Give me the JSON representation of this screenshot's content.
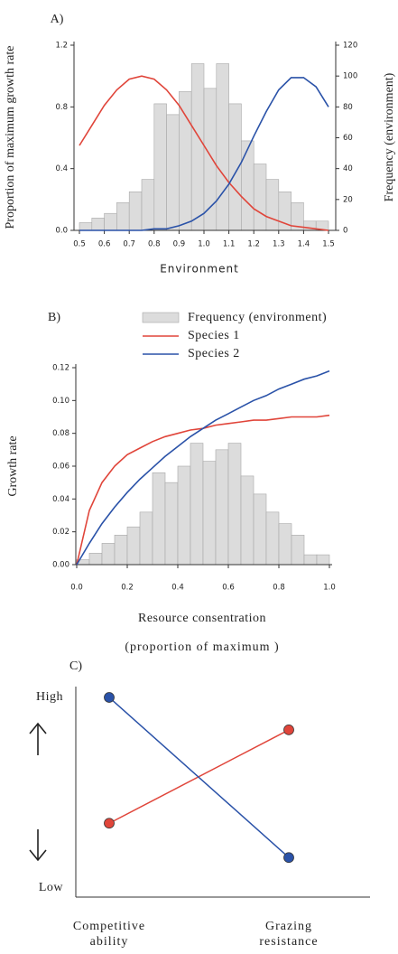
{
  "chart_data": [
    {
      "type": "histogram",
      "title": "A)",
      "xlabel": "Environment",
      "ylabel": "Proportion of maximum growth rate",
      "y2label": "Frequency (environment)",
      "histogram": {
        "bins": [
          0.5,
          0.55,
          0.6,
          0.65,
          0.7,
          0.75,
          0.8,
          0.85,
          0.9,
          0.95,
          1.0,
          1.05,
          1.1,
          1.15,
          1.2,
          1.25,
          1.3,
          1.35,
          1.4,
          1.45,
          1.5
        ],
        "counts": [
          5,
          8,
          11,
          18,
          25,
          33,
          82,
          75,
          90,
          108,
          92,
          108,
          82,
          58,
          43,
          33,
          25,
          18,
          6,
          6
        ],
        "color": "#dcdcdc",
        "axis": "y2"
      },
      "x": [
        0.5,
        0.55,
        0.6,
        0.65,
        0.7,
        0.75,
        0.8,
        0.85,
        0.9,
        0.95,
        1.0,
        1.05,
        1.1,
        1.15,
        1.2,
        1.25,
        1.3,
        1.35,
        1.4,
        1.45,
        1.5
      ],
      "series": [
        {
          "color": "#e0453a",
          "values": [
            0.55,
            0.68,
            0.81,
            0.91,
            0.98,
            1.0,
            0.98,
            0.91,
            0.81,
            0.68,
            0.55,
            0.42,
            0.31,
            0.22,
            0.14,
            0.09,
            0.06,
            0.03,
            0.02,
            0.01,
            0.0
          ]
        },
        {
          "color": "#2a52a8",
          "values": [
            0.0,
            0.0,
            0.0,
            0.0,
            0.0,
            0.0,
            0.01,
            0.01,
            0.03,
            0.06,
            0.11,
            0.19,
            0.3,
            0.44,
            0.61,
            0.77,
            0.91,
            0.99,
            0.99,
            0.93,
            0.8
          ]
        }
      ],
      "xlim": [
        0.5,
        1.5
      ],
      "xticks": [
        0.5,
        0.6,
        0.7,
        0.8,
        0.9,
        {
          "value": 1,
          "label": "1.0"
        },
        1.1,
        1.2,
        1.3,
        1.4,
        1.5
      ],
      "ylim": [
        0,
        1.2
      ],
      "yticks": [
        {
          "value": 0,
          "label": "0.0"
        },
        0.4,
        0.8,
        1.2
      ],
      "y2lim": [
        0,
        120
      ],
      "y2ticks": [
        0,
        20,
        40,
        60,
        80,
        100,
        120
      ]
    },
    {
      "type": "histogram",
      "title": "B)",
      "xlabel": "Resource consentration",
      "xlabel_sub": "(proportion of maximum )",
      "ylabel": "Growth rate",
      "histogram": {
        "name": "Frequency (environment)",
        "bins": [
          0,
          0.05,
          0.1,
          0.15,
          0.2,
          0.25,
          0.3,
          0.35,
          0.4,
          0.45,
          0.5,
          0.55,
          0.6,
          0.65,
          0.7,
          0.75,
          0.8,
          0.85,
          0.9,
          0.95,
          1.0
        ],
        "counts": [
          0.003,
          0.007,
          0.013,
          0.018,
          0.023,
          0.032,
          0.056,
          0.05,
          0.06,
          0.074,
          0.063,
          0.07,
          0.074,
          0.054,
          0.043,
          0.032,
          0.025,
          0.018,
          0.006,
          0.006
        ],
        "color": "#dcdcdc"
      },
      "x": [
        0,
        0.05,
        0.1,
        0.15,
        0.2,
        0.25,
        0.3,
        0.35,
        0.4,
        0.45,
        0.5,
        0.55,
        0.6,
        0.65,
        0.7,
        0.75,
        0.8,
        0.85,
        0.9,
        0.95,
        1.0
      ],
      "series": [
        {
          "name": "Species 1",
          "color": "#e0453a",
          "values": [
            0,
            0.033,
            0.05,
            0.06,
            0.067,
            0.071,
            0.075,
            0.078,
            0.08,
            0.082,
            0.083,
            0.085,
            0.086,
            0.087,
            0.088,
            0.088,
            0.089,
            0.09,
            0.09,
            0.09,
            0.091
          ]
        },
        {
          "name": "Species 2",
          "color": "#2a52a8",
          "values": [
            0,
            0.013,
            0.025,
            0.035,
            0.044,
            0.052,
            0.059,
            0.066,
            0.072,
            0.078,
            0.083,
            0.088,
            0.092,
            0.096,
            0.1,
            0.103,
            0.107,
            0.11,
            0.113,
            0.115,
            0.118
          ]
        }
      ],
      "xlim": [
        0,
        1
      ],
      "xticks": [
        {
          "value": 0,
          "label": "0.0"
        },
        0.2,
        0.4,
        0.6,
        0.8,
        {
          "value": 1,
          "label": "1.0"
        }
      ],
      "ylim": [
        0,
        0.12
      ],
      "yticks": [
        {
          "value": 0,
          "label": "0.00"
        },
        0.02,
        0.04,
        0.06,
        0.08,
        {
          "value": 0.1,
          "label": "0.10"
        },
        0.12
      ]
    },
    {
      "type": "line",
      "title": "C)",
      "categories": [
        "Competitive ability",
        "Grazing resistance"
      ],
      "series": [
        {
          "color": "#e0453a",
          "values": [
            0.34,
            0.83
          ]
        },
        {
          "color": "#2a52a8",
          "values": [
            1.0,
            0.16
          ]
        }
      ],
      "ylim": [
        0,
        1.04
      ],
      "yticks": [
        {
          "value": 0,
          "label": "Low"
        },
        {
          "value": 1,
          "label": "High"
        }
      ]
    }
  ]
}
